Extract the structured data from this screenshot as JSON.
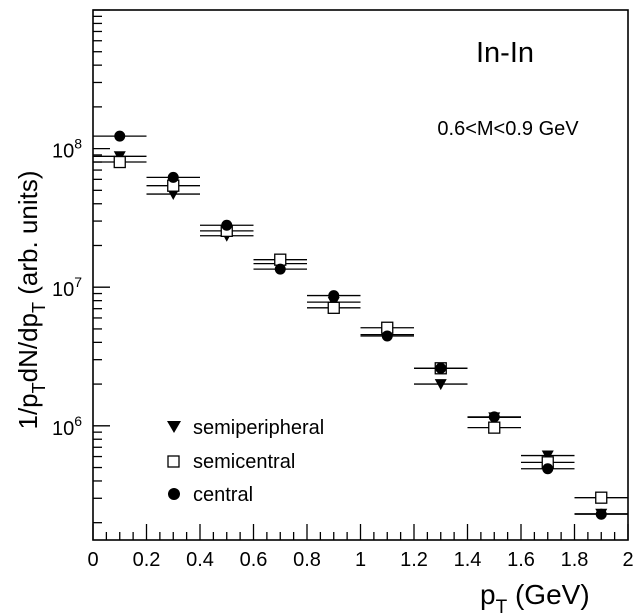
{
  "chart_data": {
    "type": "scatter",
    "title": "In-In",
    "subtitle": "0.6<M<0.9 GeV",
    "xlabel_main": "p",
    "xlabel_sub": "T",
    "xlabel_unit": " (GeV)",
    "ylabel_parts": [
      "1/p",
      "T",
      "dN/dp",
      "T",
      " (arb. units)"
    ],
    "xlim": [
      0,
      2
    ],
    "ylim": [
      150000,
      1000000000
    ],
    "yscale": "log",
    "grid": false,
    "legend_position": "bottom-left",
    "x_tick_labels": [
      "0",
      "0.2",
      "0.4",
      "0.6",
      "0.8",
      "1",
      "1.2",
      "1.4",
      "1.6",
      "1.8",
      "2"
    ],
    "y_tick_labels": [
      {
        "base": "10",
        "exp": "6",
        "value": 1000000
      },
      {
        "base": "10",
        "exp": "7",
        "value": 10000000
      },
      {
        "base": "10",
        "exp": "8",
        "value": 100000000
      }
    ],
    "x_bin_halfwidth": 0.1,
    "x": [
      0.1,
      0.3,
      0.5,
      0.7,
      0.9,
      1.1,
      1.3,
      1.5,
      1.7,
      1.9
    ],
    "series": [
      {
        "name": "semiperipheral",
        "marker": "triangle-down-filled",
        "values": [
          88000000,
          47000000,
          23500000,
          14800000,
          7800000,
          4550000,
          2000000,
          1150000,
          610000,
          232000
        ]
      },
      {
        "name": "semicentral",
        "marker": "square-open",
        "values": [
          80000000,
          54000000,
          25500000,
          15800000,
          7100000,
          5100000,
          2600000,
          970000,
          545000,
          303000
        ]
      },
      {
        "name": "central",
        "marker": "circle-filled",
        "values": [
          123000000,
          62000000,
          28000000,
          13500000,
          8700000,
          4450000,
          2600000,
          1160000,
          490000,
          230000
        ]
      }
    ]
  }
}
